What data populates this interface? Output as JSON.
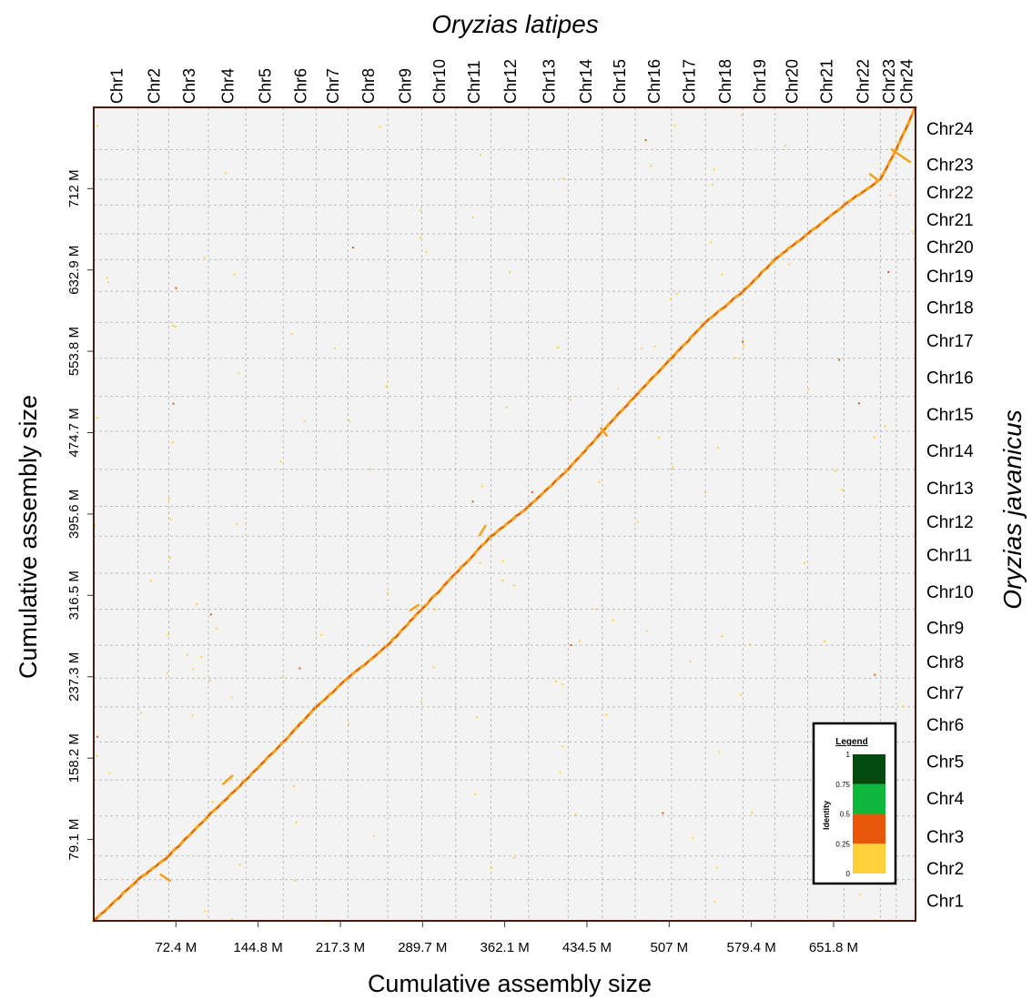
{
  "chart_data": {
    "type": "scatter",
    "title_top": "Oryzias latipes",
    "title_right": "Oryzias javanicus",
    "xlabel": "Cumulative assembly size",
    "ylabel": "Cumulative assembly size",
    "x_range": [
      0,
      724
    ],
    "y_range": [
      0,
      791
    ],
    "x_ticks": [
      {
        "value": 72.4,
        "label": "72.4 M"
      },
      {
        "value": 144.8,
        "label": "144.8 M"
      },
      {
        "value": 217.3,
        "label": "217.3 M"
      },
      {
        "value": 289.7,
        "label": "289.7 M"
      },
      {
        "value": 362.1,
        "label": "362.1 M"
      },
      {
        "value": 434.5,
        "label": "434.5 M"
      },
      {
        "value": 507,
        "label": "507 M"
      },
      {
        "value": 579.4,
        "label": "579.4 M"
      },
      {
        "value": 651.8,
        "label": "651.8 M"
      }
    ],
    "y_ticks": [
      {
        "value": 79.1,
        "label": "79.1 M"
      },
      {
        "value": 158.2,
        "label": "158.2 M"
      },
      {
        "value": 237.3,
        "label": "237.3 M"
      },
      {
        "value": 316.5,
        "label": "316.5 M"
      },
      {
        "value": 395.6,
        "label": "395.6 M"
      },
      {
        "value": 474.7,
        "label": "474.7 M"
      },
      {
        "value": 553.8,
        "label": "553.8 M"
      },
      {
        "value": 632.9,
        "label": "632.9 M"
      },
      {
        "value": 712,
        "label": "712 M"
      }
    ],
    "x_chromosomes": {
      "labels": [
        "Chr1",
        "Chr2",
        "Chr3",
        "Chr4",
        "Chr5",
        "Chr6",
        "Chr7",
        "Chr8",
        "Chr9",
        "Chr10",
        "Chr11",
        "Chr12",
        "Chr13",
        "Chr14",
        "Chr15",
        "Chr16",
        "Chr17",
        "Chr18",
        "Chr19",
        "Chr20",
        "Chr21",
        "Chr22",
        "Chr23",
        "Chr24"
      ],
      "boundaries": [
        0,
        39,
        66,
        101,
        134,
        167,
        196,
        224,
        259,
        289,
        319,
        350,
        383,
        418,
        448,
        477,
        509,
        539,
        572,
        600,
        629,
        661,
        693,
        707,
        724
      ]
    },
    "y_chromosomes": {
      "labels": [
        "Chr1",
        "Chr2",
        "Chr3",
        "Chr4",
        "Chr5",
        "Chr6",
        "Chr7",
        "Chr8",
        "Chr9",
        "Chr10",
        "Chr11",
        "Chr12",
        "Chr13",
        "Chr14",
        "Chr15",
        "Chr16",
        "Chr17",
        "Chr18",
        "Chr19",
        "Chr20",
        "Chr21",
        "Chr22",
        "Chr23",
        "Chr24"
      ],
      "boundaries": [
        0,
        40,
        63,
        102,
        137,
        174,
        208,
        236,
        268,
        303,
        338,
        374,
        403,
        439,
        476,
        510,
        547,
        582,
        612,
        643,
        668,
        696,
        721,
        750,
        791
      ]
    },
    "grid": true,
    "legend": {
      "title": "Legend",
      "axis_label": "Identity",
      "placement": "bottom-right",
      "bins": [
        {
          "from": 0,
          "to": 0.25,
          "color": "#FFD23C"
        },
        {
          "from": 0.25,
          "to": 0.5,
          "color": "#E8580C"
        },
        {
          "from": 0.5,
          "to": 0.75,
          "color": "#0FB83C"
        },
        {
          "from": 0.75,
          "to": 1,
          "color": "#004A0E"
        }
      ],
      "tick_labels": [
        "0",
        "0.25",
        "0.5",
        "0.75",
        "1"
      ]
    },
    "colors": {
      "background": "#F3F3F3",
      "frame": "#4A1A0E",
      "grid_line": "#BDBDBD",
      "diagonal_main": "#F3A323",
      "diagonal_dark": "#D2511A"
    }
  }
}
